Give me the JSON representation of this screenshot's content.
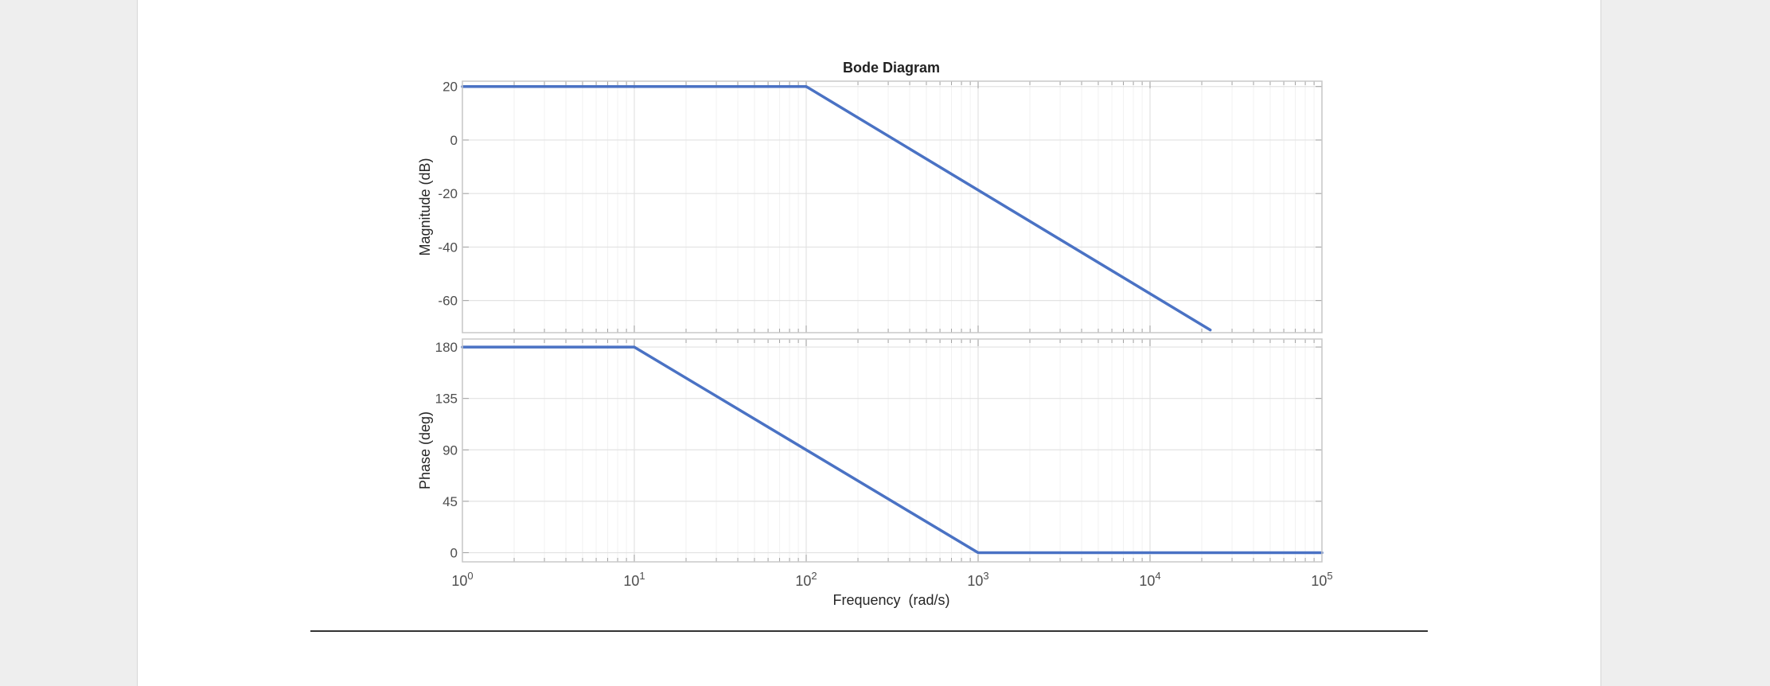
{
  "chart_data": {
    "type": "line",
    "title": "Bode Diagram",
    "xlabel": "Frequency  (rad/s)",
    "xscale": "log",
    "xlim": [
      1,
      100000
    ],
    "x_ticks": [
      {
        "value": 1,
        "base": "10",
        "exp": "0"
      },
      {
        "value": 10,
        "base": "10",
        "exp": "1"
      },
      {
        "value": 100,
        "base": "10",
        "exp": "2"
      },
      {
        "value": 1000,
        "base": "10",
        "exp": "3"
      },
      {
        "value": 10000,
        "base": "10",
        "exp": "4"
      },
      {
        "value": 100000,
        "base": "10",
        "exp": "5"
      }
    ],
    "grid": true,
    "line_color": "#4a72c4",
    "subplots": [
      {
        "key": "magnitude",
        "ylabel": "Magnitude (dB)",
        "ylim": [
          -72,
          22
        ],
        "yticks": [
          20,
          0,
          -20,
          -40,
          -60
        ],
        "series": [
          {
            "x": [
              1,
              100,
              22400
            ],
            "y": [
              20,
              20,
              -71
            ]
          }
        ]
      },
      {
        "key": "phase",
        "ylabel": "Phase (deg)",
        "ylim": [
          -8,
          187
        ],
        "yticks": [
          180,
          135,
          90,
          45,
          0
        ],
        "series": [
          {
            "x": [
              1,
              10,
              1000,
              100000
            ],
            "y": [
              180,
              180,
              0,
              0
            ]
          }
        ]
      }
    ]
  }
}
